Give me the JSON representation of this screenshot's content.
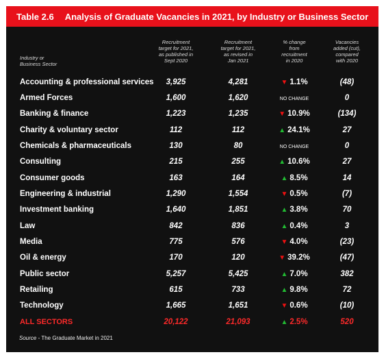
{
  "title": {
    "number": "Table 2.6",
    "text": "Analysis of Graduate Vacancies in 2021, by Industry or Business Sector"
  },
  "headers": {
    "sector": [
      "Industry or",
      "Business Sector"
    ],
    "col1": [
      "Recruitment",
      "target for 2021,",
      "as published in",
      "Sept 2020"
    ],
    "col2": [
      "Recruitment",
      "target for 2021,",
      "as revised in",
      "Jan 2021"
    ],
    "col3": [
      "% change",
      "from",
      "recruitment",
      "in 2020"
    ],
    "col4": [
      "Vacancies",
      "added (cut),",
      "compared",
      "with 2020"
    ]
  },
  "colors": {
    "title_bar": "#e8111b",
    "background": "#111111",
    "up_arrow": "#22bb33",
    "down_arrow": "#ee1111",
    "total_text": "#ff2a2a"
  },
  "rows": [
    {
      "sector": "Accounting & professional services",
      "sept": "3,925",
      "jan": "4,281",
      "dir": "down",
      "change": "1.1%",
      "added": "(48)"
    },
    {
      "sector": "Armed Forces",
      "sept": "1,600",
      "jan": "1,620",
      "dir": "none",
      "change": "NO CHANGE",
      "added": "0"
    },
    {
      "sector": "Banking & finance",
      "sept": "1,223",
      "jan": "1,235",
      "dir": "down",
      "change": "10.9%",
      "added": "(134)"
    },
    {
      "sector": "Charity & voluntary sector",
      "sept": "112",
      "jan": "112",
      "dir": "up",
      "change": "24.1%",
      "added": "27"
    },
    {
      "sector": "Chemicals & pharmaceuticals",
      "sept": "130",
      "jan": "80",
      "dir": "none",
      "change": "NO CHANGE",
      "added": "0"
    },
    {
      "sector": "Consulting",
      "sept": "215",
      "jan": "255",
      "dir": "up",
      "change": "10.6%",
      "added": "27"
    },
    {
      "sector": "Consumer goods",
      "sept": "163",
      "jan": "164",
      "dir": "up",
      "change": "8.5%",
      "added": "14"
    },
    {
      "sector": "Engineering & industrial",
      "sept": "1,290",
      "jan": "1,554",
      "dir": "down",
      "change": "0.5%",
      "added": "(7)"
    },
    {
      "sector": "Investment banking",
      "sept": "1,640",
      "jan": "1,851",
      "dir": "up",
      "change": "3.8%",
      "added": "70"
    },
    {
      "sector": "Law",
      "sept": "842",
      "jan": "836",
      "dir": "up",
      "change": "0.4%",
      "added": "3"
    },
    {
      "sector": "Media",
      "sept": "775",
      "jan": "576",
      "dir": "down",
      "change": "4.0%",
      "added": "(23)"
    },
    {
      "sector": "Oil & energy",
      "sept": "170",
      "jan": "120",
      "dir": "down",
      "change": "39.2%",
      "added": "(47)"
    },
    {
      "sector": "Public sector",
      "sept": "5,257",
      "jan": "5,425",
      "dir": "up",
      "change": "7.0%",
      "added": "382"
    },
    {
      "sector": "Retailing",
      "sept": "615",
      "jan": "733",
      "dir": "up",
      "change": "9.8%",
      "added": "72"
    },
    {
      "sector": "Technology",
      "sept": "1,665",
      "jan": "1,651",
      "dir": "down",
      "change": "0.6%",
      "added": "(10)"
    }
  ],
  "total": {
    "sector": "ALL SECTORS",
    "sept": "20,122",
    "jan": "21,093",
    "dir": "up",
    "change": "2.5%",
    "added": "520"
  },
  "source": {
    "label": "Source",
    "text": " - The Graduate Market in 2021"
  }
}
